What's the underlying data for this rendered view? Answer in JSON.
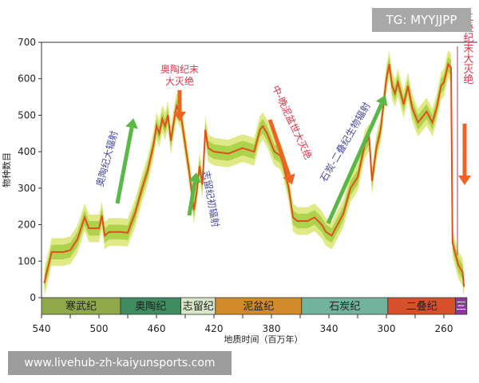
{
  "watermark": "TG: MYYJJPP",
  "url_banner": "www.livehub-zh-kaiyunsports.com",
  "chart_data": {
    "type": "line",
    "title": "",
    "xlabel": "地质时间（百万年）",
    "ylabel": "物种数目",
    "xlim": [
      540,
      244
    ],
    "ylim": [
      0,
      700
    ],
    "x_ticks": [
      540,
      500,
      460,
      420,
      380,
      340,
      300,
      260
    ],
    "y_ticks": [
      0,
      100,
      200,
      300,
      400,
      500,
      600,
      700
    ],
    "grid": false,
    "series_color": "#e0501e",
    "band_colors": [
      "#dbe87a",
      "#a9cf45"
    ],
    "points": [
      [
        538,
        40
      ],
      [
        537,
        60
      ],
      [
        535,
        90
      ],
      [
        533,
        125
      ],
      [
        525,
        125
      ],
      [
        520,
        130
      ],
      [
        515,
        160
      ],
      [
        510,
        220
      ],
      [
        507,
        190
      ],
      [
        500,
        190
      ],
      [
        498,
        225
      ],
      [
        496,
        170
      ],
      [
        493,
        180
      ],
      [
        485,
        180
      ],
      [
        480,
        178
      ],
      [
        478,
        200
      ],
      [
        475,
        230
      ],
      [
        470,
        300
      ],
      [
        466,
        350
      ],
      [
        462,
        420
      ],
      [
        460,
        470
      ],
      [
        458,
        450
      ],
      [
        456,
        490
      ],
      [
        454,
        470
      ],
      [
        452,
        500
      ],
      [
        450,
        430
      ],
      [
        448,
        480
      ],
      [
        446,
        525
      ],
      [
        443,
        500
      ],
      [
        440,
        420
      ],
      [
        437,
        340
      ],
      [
        434,
        240
      ],
      [
        432,
        290
      ],
      [
        430,
        360
      ],
      [
        428,
        310
      ],
      [
        426,
        460
      ],
      [
        424,
        410
      ],
      [
        420,
        400
      ],
      [
        410,
        395
      ],
      [
        400,
        410
      ],
      [
        392,
        400
      ],
      [
        388,
        460
      ],
      [
        386,
        470
      ],
      [
        383,
        450
      ],
      [
        378,
        400
      ],
      [
        374,
        390
      ],
      [
        372,
        370
      ],
      [
        368,
        300
      ],
      [
        365,
        220
      ],
      [
        362,
        210
      ],
      [
        355,
        210
      ],
      [
        350,
        220
      ],
      [
        345,
        200
      ],
      [
        342,
        180
      ],
      [
        338,
        170
      ],
      [
        334,
        200
      ],
      [
        330,
        230
      ],
      [
        325,
        300
      ],
      [
        320,
        330
      ],
      [
        315,
        420
      ],
      [
        312,
        440
      ],
      [
        310,
        320
      ],
      [
        307,
        410
      ],
      [
        304,
        460
      ],
      [
        300,
        600
      ],
      [
        298,
        640
      ],
      [
        296,
        580
      ],
      [
        294,
        560
      ],
      [
        292,
        590
      ],
      [
        288,
        530
      ],
      [
        285,
        580
      ],
      [
        282,
        520
      ],
      [
        278,
        480
      ],
      [
        272,
        510
      ],
      [
        268,
        480
      ],
      [
        265,
        520
      ],
      [
        262,
        580
      ],
      [
        260,
        590
      ],
      [
        257,
        640
      ],
      [
        255,
        630
      ],
      [
        254,
        150
      ],
      [
        252,
        120
      ],
      [
        250,
        90
      ],
      [
        247,
        70
      ],
      [
        246,
        30
      ]
    ],
    "periods": [
      {
        "name": "寒武纪",
        "start": 540,
        "end": 485,
        "color": "#8fa94a"
      },
      {
        "name": "奥陶纪",
        "start": 485,
        "end": 443,
        "color": "#3f8c60"
      },
      {
        "name": "志留纪",
        "start": 443,
        "end": 419,
        "color": "#d9e8c8"
      },
      {
        "name": "泥盆纪",
        "start": 419,
        "end": 359,
        "color": "#d38a2a"
      },
      {
        "name": "石炭纪",
        "start": 359,
        "end": 299,
        "color": "#72b39e"
      },
      {
        "name": "二叠纪",
        "start": 299,
        "end": 252,
        "color": "#d6502a"
      },
      {
        "name": "三",
        "start": 252,
        "end": 244,
        "color": "#8a3a9a"
      }
    ],
    "annotations": [
      {
        "text": "奥陶纪大辐射",
        "kind": "radiation",
        "x": 492,
        "y": 320,
        "color": "#4a4aa0"
      },
      {
        "text": "奥陶纪末",
        "text2": "大灭绝",
        "kind": "extinction",
        "x": 443,
        "y": 600,
        "color": "#d03a4a"
      },
      {
        "text": "志留纪初辐射",
        "kind": "radiation",
        "x": 420,
        "y": 300,
        "color": "#4a4aa0"
      },
      {
        "text": "中-晚泥盆世大灭绝",
        "kind": "extinction",
        "x": 375,
        "y": 480,
        "color": "#d03a4a"
      },
      {
        "text": "石炭-二叠纪生物辐射",
        "kind": "radiation",
        "x": 335,
        "y": 420,
        "color": "#4a4aa0"
      },
      {
        "text": "二叠纪末大灭绝",
        "kind": "extinction",
        "x": 251,
        "y": 600,
        "color": "#d03a4a"
      }
    ]
  }
}
